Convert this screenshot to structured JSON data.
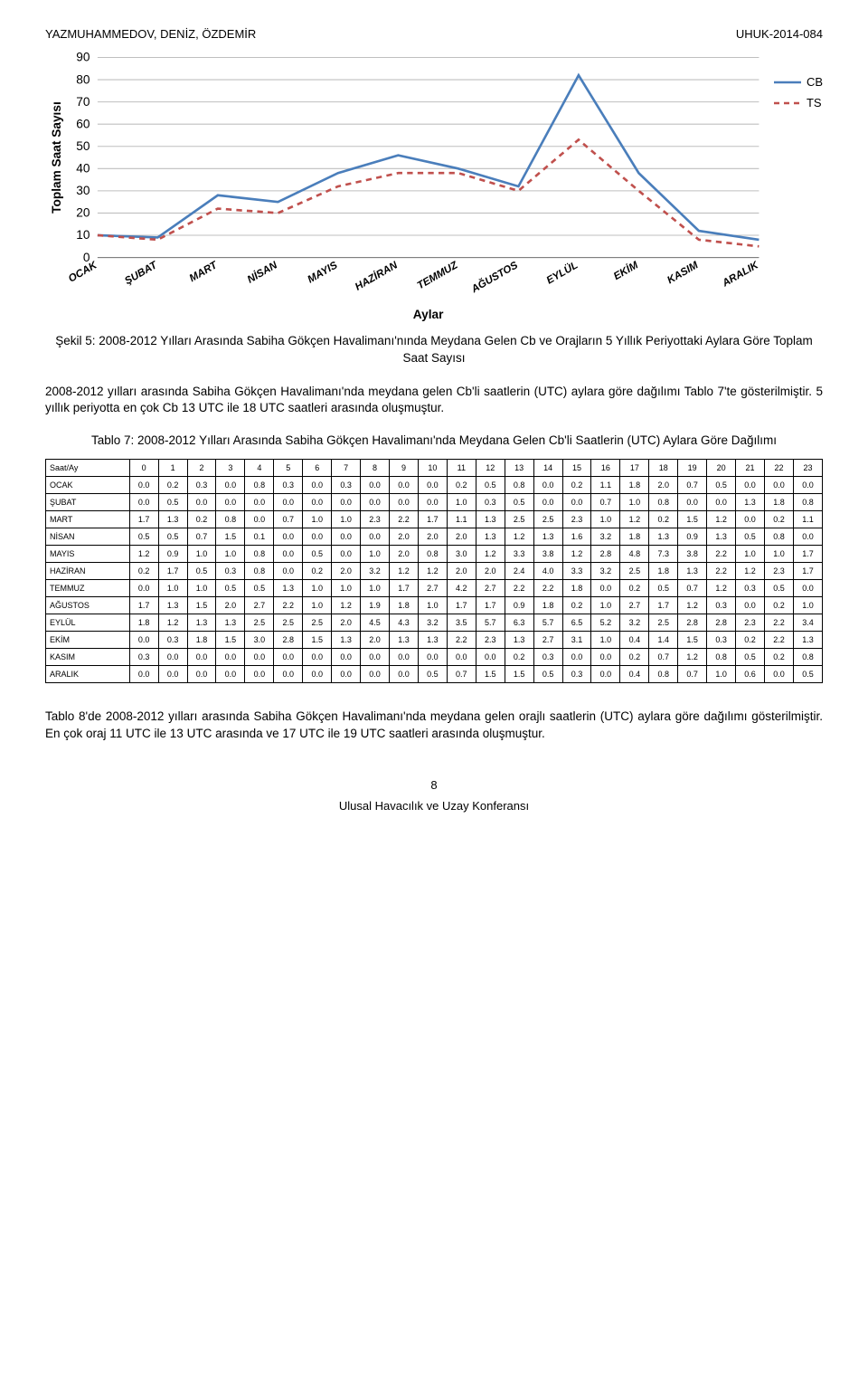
{
  "header": {
    "left": "YAZMUHAMMEDOV, DENİZ, ÖZDEMİR",
    "right": "UHUK-2014-084"
  },
  "chart": {
    "type": "line",
    "yAxisLabel": "Toplam Saat Sayısı",
    "xAxisLabel": "Aylar",
    "ylim": [
      0,
      90
    ],
    "ytick_step": 10,
    "categories": [
      "OCAK",
      "ŞUBAT",
      "MART",
      "NİSAN",
      "MAYIS",
      "HAZİRAN",
      "TEMMUZ",
      "AĞUSTOS",
      "EYLÜL",
      "EKİM",
      "KASIM",
      "ARALIK"
    ],
    "series": [
      {
        "name": "CB",
        "color": "#4a7ebb",
        "dash": "none",
        "values": [
          10,
          9,
          28,
          25,
          38,
          46,
          40,
          32,
          82,
          38,
          12,
          8
        ]
      },
      {
        "name": "TS",
        "color": "#c0504d",
        "dash": "6,5",
        "values": [
          10,
          8,
          22,
          20,
          32,
          38,
          38,
          30,
          53,
          30,
          8,
          5
        ]
      }
    ],
    "grid_color": "#bfbfbf",
    "background_color": "#ffffff",
    "axis_color": "#808080",
    "axis_fontsize": 13,
    "line_width": 2.5
  },
  "fig_caption": "Şekil 5: 2008-2012 Yılları Arasında Sabiha Gökçen Havalimanı'nında Meydana Gelen Cb ve Orajların 5 Yıllık Periyottaki Aylara Göre Toplam Saat Sayısı",
  "para1": "2008-2012 yılları arasında Sabiha Gökçen Havalimanı'nda meydana gelen Cb'li saatlerin (UTC) aylara göre dağılımı Tablo 7'te gösterilmiştir. 5 yıllık periyotta en çok Cb 13 UTC ile 18 UTC saatleri arasında oluşmuştur.",
  "table_caption": "Tablo 7: 2008-2012 Yılları Arasında Sabiha Gökçen Havalimanı'nda Meydana Gelen Cb'li Saatlerin (UTC) Aylara Göre Dağılımı",
  "table": {
    "corner": "Saat/Ay",
    "col_headers": [
      "0",
      "1",
      "2",
      "3",
      "4",
      "5",
      "6",
      "7",
      "8",
      "9",
      "10",
      "11",
      "12",
      "13",
      "14",
      "15",
      "16",
      "17",
      "18",
      "19",
      "20",
      "21",
      "22",
      "23"
    ],
    "rows": [
      {
        "label": "OCAK",
        "cells": [
          "0.0",
          "0.2",
          "0.3",
          "0.0",
          "0.8",
          "0.3",
          "0.0",
          "0.3",
          "0.0",
          "0.0",
          "0.0",
          "0.2",
          "0.5",
          "0.8",
          "0.0",
          "0.2",
          "1.1",
          "1.8",
          "2.0",
          "0.7",
          "0.5",
          "0.0",
          "0.0",
          "0.0"
        ]
      },
      {
        "label": "ŞUBAT",
        "cells": [
          "0.0",
          "0.5",
          "0.0",
          "0.0",
          "0.0",
          "0.0",
          "0.0",
          "0.0",
          "0.0",
          "0.0",
          "0.0",
          "1.0",
          "0.3",
          "0.5",
          "0.0",
          "0.0",
          "0.7",
          "1.0",
          "0.8",
          "0.0",
          "0.0",
          "1.3",
          "1.8",
          "0.8"
        ]
      },
      {
        "label": "MART",
        "cells": [
          "1.7",
          "1.3",
          "0.2",
          "0.8",
          "0.0",
          "0.7",
          "1.0",
          "1.0",
          "2.3",
          "2.2",
          "1.7",
          "1.1",
          "1.3",
          "2.5",
          "2.5",
          "2.3",
          "1.0",
          "1.2",
          "0.2",
          "1.5",
          "1.2",
          "0.0",
          "0.2",
          "1.1"
        ]
      },
      {
        "label": "NİSAN",
        "cells": [
          "0.5",
          "0.5",
          "0.7",
          "1.5",
          "0.1",
          "0.0",
          "0.0",
          "0.0",
          "0.0",
          "2.0",
          "2.0",
          "2.0",
          "1.3",
          "1.2",
          "1.3",
          "1.6",
          "3.2",
          "1.8",
          "1.3",
          "0.9",
          "1.3",
          "0.5",
          "0.8",
          "0.0"
        ]
      },
      {
        "label": "MAYIS",
        "cells": [
          "1.2",
          "0.9",
          "1.0",
          "1.0",
          "0.8",
          "0.0",
          "0.5",
          "0.0",
          "1.0",
          "2.0",
          "0.8",
          "3.0",
          "1.2",
          "3.3",
          "3.8",
          "1.2",
          "2.8",
          "4.8",
          "7.3",
          "3.8",
          "2.2",
          "1.0",
          "1.0",
          "1.7"
        ]
      },
      {
        "label": "HAZİRAN",
        "cells": [
          "0.2",
          "1.7",
          "0.5",
          "0.3",
          "0.8",
          "0.0",
          "0.2",
          "2.0",
          "3.2",
          "1.2",
          "1.2",
          "2.0",
          "2.0",
          "2.4",
          "4.0",
          "3.3",
          "3.2",
          "2.5",
          "1.8",
          "1.3",
          "2.2",
          "1.2",
          "2.3",
          "1.7"
        ]
      },
      {
        "label": "TEMMUZ",
        "cells": [
          "0.0",
          "1.0",
          "1.0",
          "0.5",
          "0.5",
          "1.3",
          "1.0",
          "1.0",
          "1.0",
          "1.7",
          "2.7",
          "4.2",
          "2.7",
          "2.2",
          "2.2",
          "1.8",
          "0.0",
          "0.2",
          "0.5",
          "0.7",
          "1.2",
          "0.3",
          "0.5",
          "0.0"
        ]
      },
      {
        "label": "AĞUSTOS",
        "cells": [
          "1.7",
          "1.3",
          "1.5",
          "2.0",
          "2.7",
          "2.2",
          "1.0",
          "1.2",
          "1.9",
          "1.8",
          "1.0",
          "1.7",
          "1.7",
          "0.9",
          "1.8",
          "0.2",
          "1.0",
          "2.7",
          "1.7",
          "1.2",
          "0.3",
          "0.0",
          "0.2",
          "1.0"
        ]
      },
      {
        "label": "EYLÜL",
        "cells": [
          "1.8",
          "1.2",
          "1.3",
          "1.3",
          "2.5",
          "2.5",
          "2.5",
          "2.0",
          "4.5",
          "4.3",
          "3.2",
          "3.5",
          "5.7",
          "6.3",
          "5.7",
          "6.5",
          "5.2",
          "3.2",
          "2.5",
          "2.8",
          "2.8",
          "2.3",
          "2.2",
          "3.4"
        ]
      },
      {
        "label": "EKİM",
        "cells": [
          "0.0",
          "0.3",
          "1.8",
          "1.5",
          "3.0",
          "2.8",
          "1.5",
          "1.3",
          "2.0",
          "1.3",
          "1.3",
          "2.2",
          "2.3",
          "1.3",
          "2.7",
          "3.1",
          "1.0",
          "0.4",
          "1.4",
          "1.5",
          "0.3",
          "0.2",
          "2.2",
          "1.3"
        ]
      },
      {
        "label": "KASIM",
        "cells": [
          "0.3",
          "0.0",
          "0.0",
          "0.0",
          "0.0",
          "0.0",
          "0.0",
          "0.0",
          "0.0",
          "0.0",
          "0.0",
          "0.0",
          "0.0",
          "0.2",
          "0.3",
          "0.0",
          "0.0",
          "0.2",
          "0.7",
          "1.2",
          "0.8",
          "0.5",
          "0.2",
          "0.8"
        ]
      },
      {
        "label": "ARALIK",
        "cells": [
          "0.0",
          "0.0",
          "0.0",
          "0.0",
          "0.0",
          "0.0",
          "0.0",
          "0.0",
          "0.0",
          "0.0",
          "0.5",
          "0.7",
          "1.5",
          "1.5",
          "0.5",
          "0.3",
          "0.0",
          "0.4",
          "0.8",
          "0.7",
          "1.0",
          "0.6",
          "0.0",
          "0.5"
        ]
      }
    ]
  },
  "para2": "Tablo 8'de 2008-2012 yılları arasında Sabiha Gökçen Havalimanı'nda meydana gelen orajlı saatlerin (UTC) aylara göre dağılımı gösterilmiştir. En çok oraj 11 UTC ile 13 UTC arasında ve 17 UTC ile 19 UTC saatleri arasında oluşmuştur.",
  "footer": {
    "page": "8",
    "conf": "Ulusal Havacılık ve Uzay Konferansı"
  }
}
